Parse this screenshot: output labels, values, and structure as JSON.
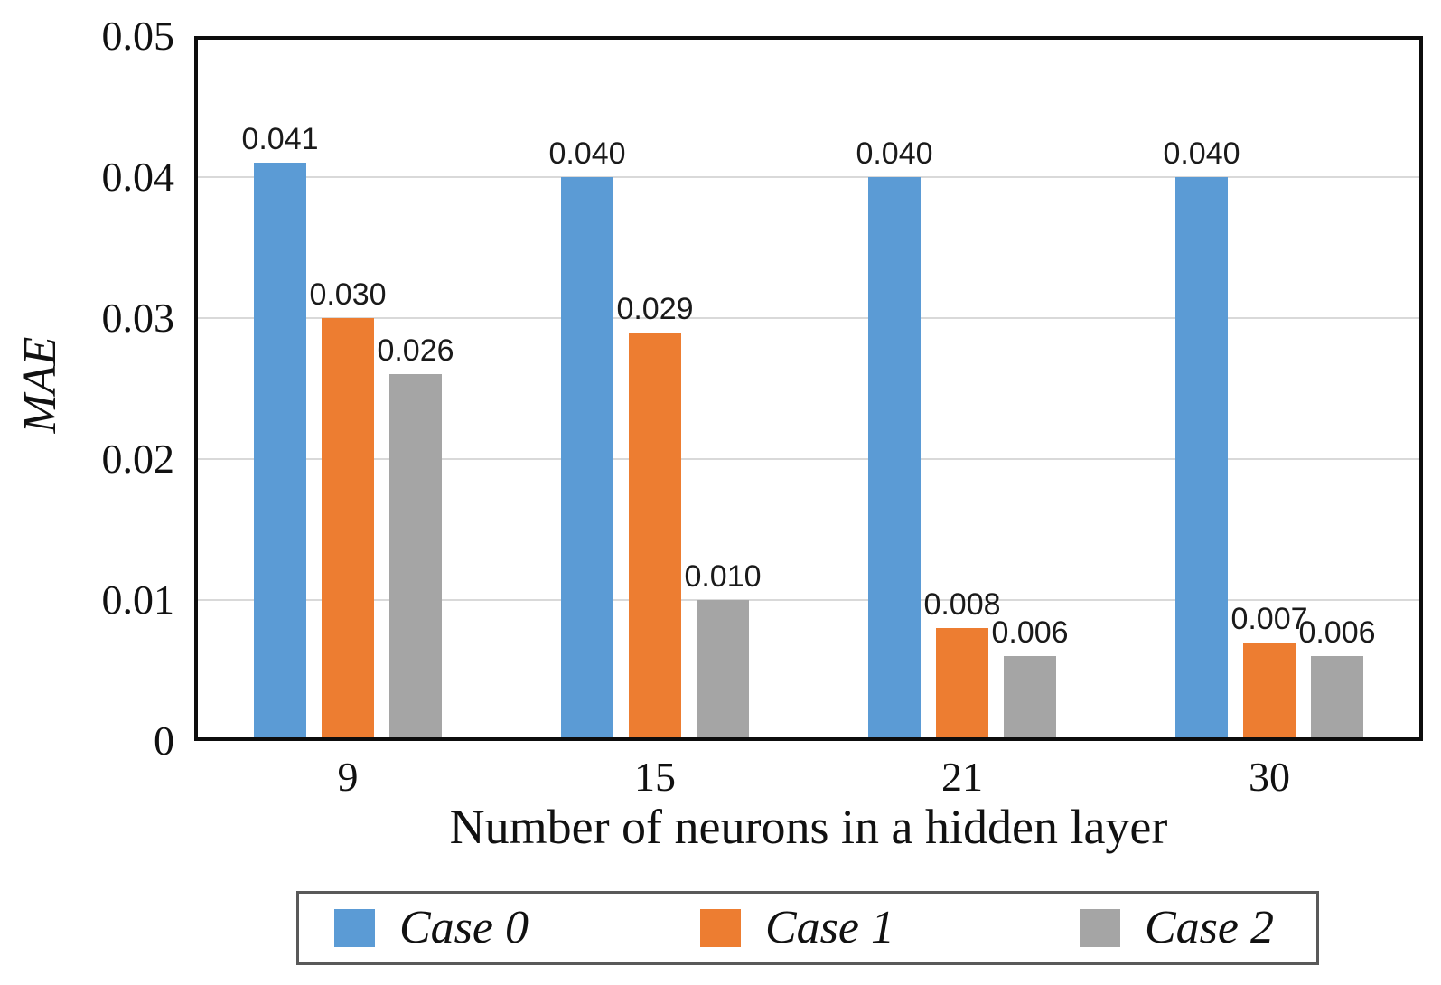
{
  "figure": {
    "background": "#ffffff"
  },
  "chart_data": {
    "type": "bar",
    "title": "",
    "xlabel": "Number of neurons in a hidden layer",
    "ylabel": "MAE",
    "categories": [
      "9",
      "15",
      "21",
      "30"
    ],
    "series": [
      {
        "name": "Case 0",
        "color": "#5B9BD5",
        "values": [
          0.041,
          0.04,
          0.04,
          0.04
        ],
        "labels": [
          "0.041",
          "0.040",
          "0.040",
          "0.040"
        ]
      },
      {
        "name": "Case 1",
        "color": "#ED7D31",
        "values": [
          0.03,
          0.029,
          0.008,
          0.007
        ],
        "labels": [
          "0.030",
          "0.029",
          "0.008",
          "0.007"
        ]
      },
      {
        "name": "Case 2",
        "color": "#A5A5A5",
        "values": [
          0.026,
          0.01,
          0.006,
          0.006
        ],
        "labels": [
          "0.026",
          "0.010",
          "0.006",
          "0.006"
        ]
      }
    ],
    "ylim": [
      0,
      0.05
    ],
    "y_ticks": [
      {
        "value": 0,
        "label": "0"
      },
      {
        "value": 0.01,
        "label": "0.01"
      },
      {
        "value": 0.02,
        "label": "0.02"
      },
      {
        "value": 0.03,
        "label": "0.03"
      },
      {
        "value": 0.04,
        "label": "0.04"
      },
      {
        "value": 0.05,
        "label": "0.05"
      }
    ],
    "grid": true,
    "gridline_color": "#D9D9D9",
    "frame_color": "#0d0d0d",
    "value_labels": true,
    "legend_position": "bottom",
    "legend_border_color": "#595959"
  }
}
